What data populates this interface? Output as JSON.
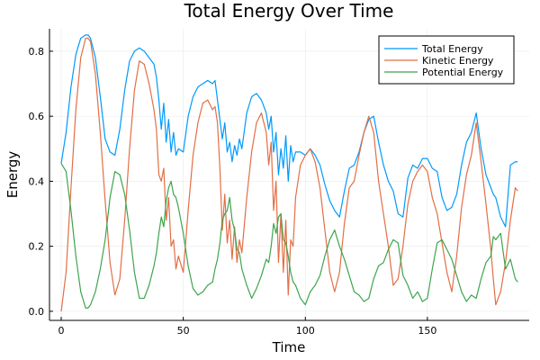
{
  "chart_data": {
    "type": "line",
    "title": "Total Energy Over Time",
    "xlabel": "Time",
    "ylabel": "Energy",
    "xlim": [
      -4.8,
      191.7
    ],
    "ylim": [
      -0.028,
      0.869
    ],
    "xticks": [
      0,
      50,
      100,
      150
    ],
    "xtick_labels": [
      "0",
      "50",
      "100",
      "150"
    ],
    "yticks": [
      0.0,
      0.2,
      0.4,
      0.6,
      0.8
    ],
    "ytick_labels": [
      "0.0",
      "0.2",
      "0.4",
      "0.6",
      "0.8"
    ],
    "grid": true,
    "legend_position": "top-right",
    "x": [
      0,
      2,
      4,
      6,
      8,
      10,
      11,
      12,
      14,
      16,
      18,
      20,
      22,
      24,
      26,
      28,
      30,
      32,
      34,
      36,
      38,
      39,
      40,
      41,
      42,
      43,
      44,
      45,
      46,
      47,
      48,
      50,
      52,
      54,
      56,
      58,
      60,
      62,
      63,
      64,
      65,
      66,
      67,
      68,
      69,
      70,
      71,
      72,
      73,
      74,
      76,
      78,
      80,
      82,
      84,
      85,
      86,
      87,
      88,
      89,
      90,
      91,
      92,
      93,
      94,
      95,
      96,
      98,
      100,
      102,
      104,
      106,
      108,
      110,
      112,
      114,
      116,
      118,
      120,
      122,
      124,
      126,
      128,
      130,
      132,
      134,
      136,
      138,
      140,
      142,
      144,
      146,
      148,
      150,
      152,
      154,
      156,
      158,
      160,
      162,
      164,
      166,
      168,
      170,
      172,
      174,
      176,
      177,
      178,
      180,
      182,
      184,
      186,
      187
    ],
    "series": [
      {
        "name": "Total Energy",
        "color": "#009AFA",
        "values": [
          0.455,
          0.55,
          0.69,
          0.79,
          0.84,
          0.85,
          0.85,
          0.84,
          0.78,
          0.66,
          0.53,
          0.49,
          0.48,
          0.56,
          0.68,
          0.77,
          0.8,
          0.81,
          0.8,
          0.78,
          0.76,
          0.72,
          0.65,
          0.56,
          0.64,
          0.52,
          0.59,
          0.49,
          0.55,
          0.48,
          0.5,
          0.49,
          0.6,
          0.66,
          0.69,
          0.7,
          0.71,
          0.7,
          0.71,
          0.65,
          0.59,
          0.53,
          0.58,
          0.49,
          0.52,
          0.46,
          0.51,
          0.48,
          0.53,
          0.5,
          0.61,
          0.66,
          0.67,
          0.65,
          0.61,
          0.56,
          0.6,
          0.49,
          0.55,
          0.42,
          0.5,
          0.44,
          0.54,
          0.4,
          0.51,
          0.46,
          0.49,
          0.49,
          0.48,
          0.5,
          0.48,
          0.45,
          0.39,
          0.34,
          0.31,
          0.29,
          0.37,
          0.44,
          0.45,
          0.49,
          0.55,
          0.59,
          0.6,
          0.52,
          0.45,
          0.4,
          0.37,
          0.3,
          0.29,
          0.41,
          0.45,
          0.44,
          0.47,
          0.47,
          0.44,
          0.43,
          0.35,
          0.31,
          0.32,
          0.36,
          0.45,
          0.52,
          0.55,
          0.61,
          0.5,
          0.42,
          0.38,
          0.36,
          0.35,
          0.29,
          0.26,
          0.45,
          0.46,
          0.46
        ]
      },
      {
        "name": "Kinetic Energy",
        "color": "#E26F46",
        "values": [
          0.0,
          0.12,
          0.38,
          0.62,
          0.78,
          0.84,
          0.84,
          0.83,
          0.73,
          0.55,
          0.34,
          0.15,
          0.05,
          0.1,
          0.28,
          0.5,
          0.68,
          0.77,
          0.76,
          0.7,
          0.62,
          0.56,
          0.42,
          0.4,
          0.44,
          0.28,
          0.35,
          0.2,
          0.22,
          0.13,
          0.17,
          0.12,
          0.31,
          0.48,
          0.58,
          0.64,
          0.65,
          0.62,
          0.63,
          0.58,
          0.44,
          0.25,
          0.36,
          0.21,
          0.28,
          0.16,
          0.26,
          0.15,
          0.22,
          0.18,
          0.35,
          0.49,
          0.58,
          0.61,
          0.55,
          0.45,
          0.52,
          0.31,
          0.4,
          0.15,
          0.3,
          0.12,
          0.28,
          0.05,
          0.22,
          0.2,
          0.35,
          0.45,
          0.48,
          0.5,
          0.46,
          0.38,
          0.25,
          0.12,
          0.06,
          0.12,
          0.27,
          0.38,
          0.4,
          0.48,
          0.55,
          0.6,
          0.55,
          0.4,
          0.3,
          0.2,
          0.08,
          0.1,
          0.2,
          0.33,
          0.4,
          0.43,
          0.45,
          0.43,
          0.35,
          0.3,
          0.21,
          0.12,
          0.06,
          0.17,
          0.32,
          0.42,
          0.48,
          0.58,
          0.46,
          0.33,
          0.19,
          0.1,
          0.02,
          0.06,
          0.15,
          0.28,
          0.38,
          0.37
        ]
      },
      {
        "name": "Potential Energy",
        "color": "#3EA44E",
        "values": [
          0.455,
          0.43,
          0.31,
          0.17,
          0.06,
          0.01,
          0.01,
          0.02,
          0.06,
          0.13,
          0.22,
          0.35,
          0.43,
          0.42,
          0.36,
          0.25,
          0.12,
          0.04,
          0.04,
          0.08,
          0.14,
          0.18,
          0.24,
          0.29,
          0.26,
          0.34,
          0.38,
          0.4,
          0.36,
          0.35,
          0.32,
          0.24,
          0.14,
          0.07,
          0.05,
          0.06,
          0.08,
          0.09,
          0.13,
          0.16,
          0.21,
          0.28,
          0.3,
          0.31,
          0.35,
          0.28,
          0.25,
          0.19,
          0.18,
          0.13,
          0.08,
          0.04,
          0.07,
          0.11,
          0.16,
          0.15,
          0.2,
          0.27,
          0.24,
          0.29,
          0.3,
          0.22,
          0.21,
          0.17,
          0.12,
          0.09,
          0.08,
          0.04,
          0.02,
          0.06,
          0.08,
          0.11,
          0.17,
          0.22,
          0.25,
          0.2,
          0.16,
          0.11,
          0.06,
          0.05,
          0.03,
          0.04,
          0.1,
          0.14,
          0.15,
          0.19,
          0.22,
          0.21,
          0.11,
          0.08,
          0.04,
          0.06,
          0.03,
          0.04,
          0.13,
          0.21,
          0.22,
          0.19,
          0.16,
          0.11,
          0.06,
          0.03,
          0.05,
          0.04,
          0.1,
          0.15,
          0.17,
          0.23,
          0.22,
          0.24,
          0.13,
          0.16,
          0.1,
          0.09
        ]
      }
    ]
  }
}
